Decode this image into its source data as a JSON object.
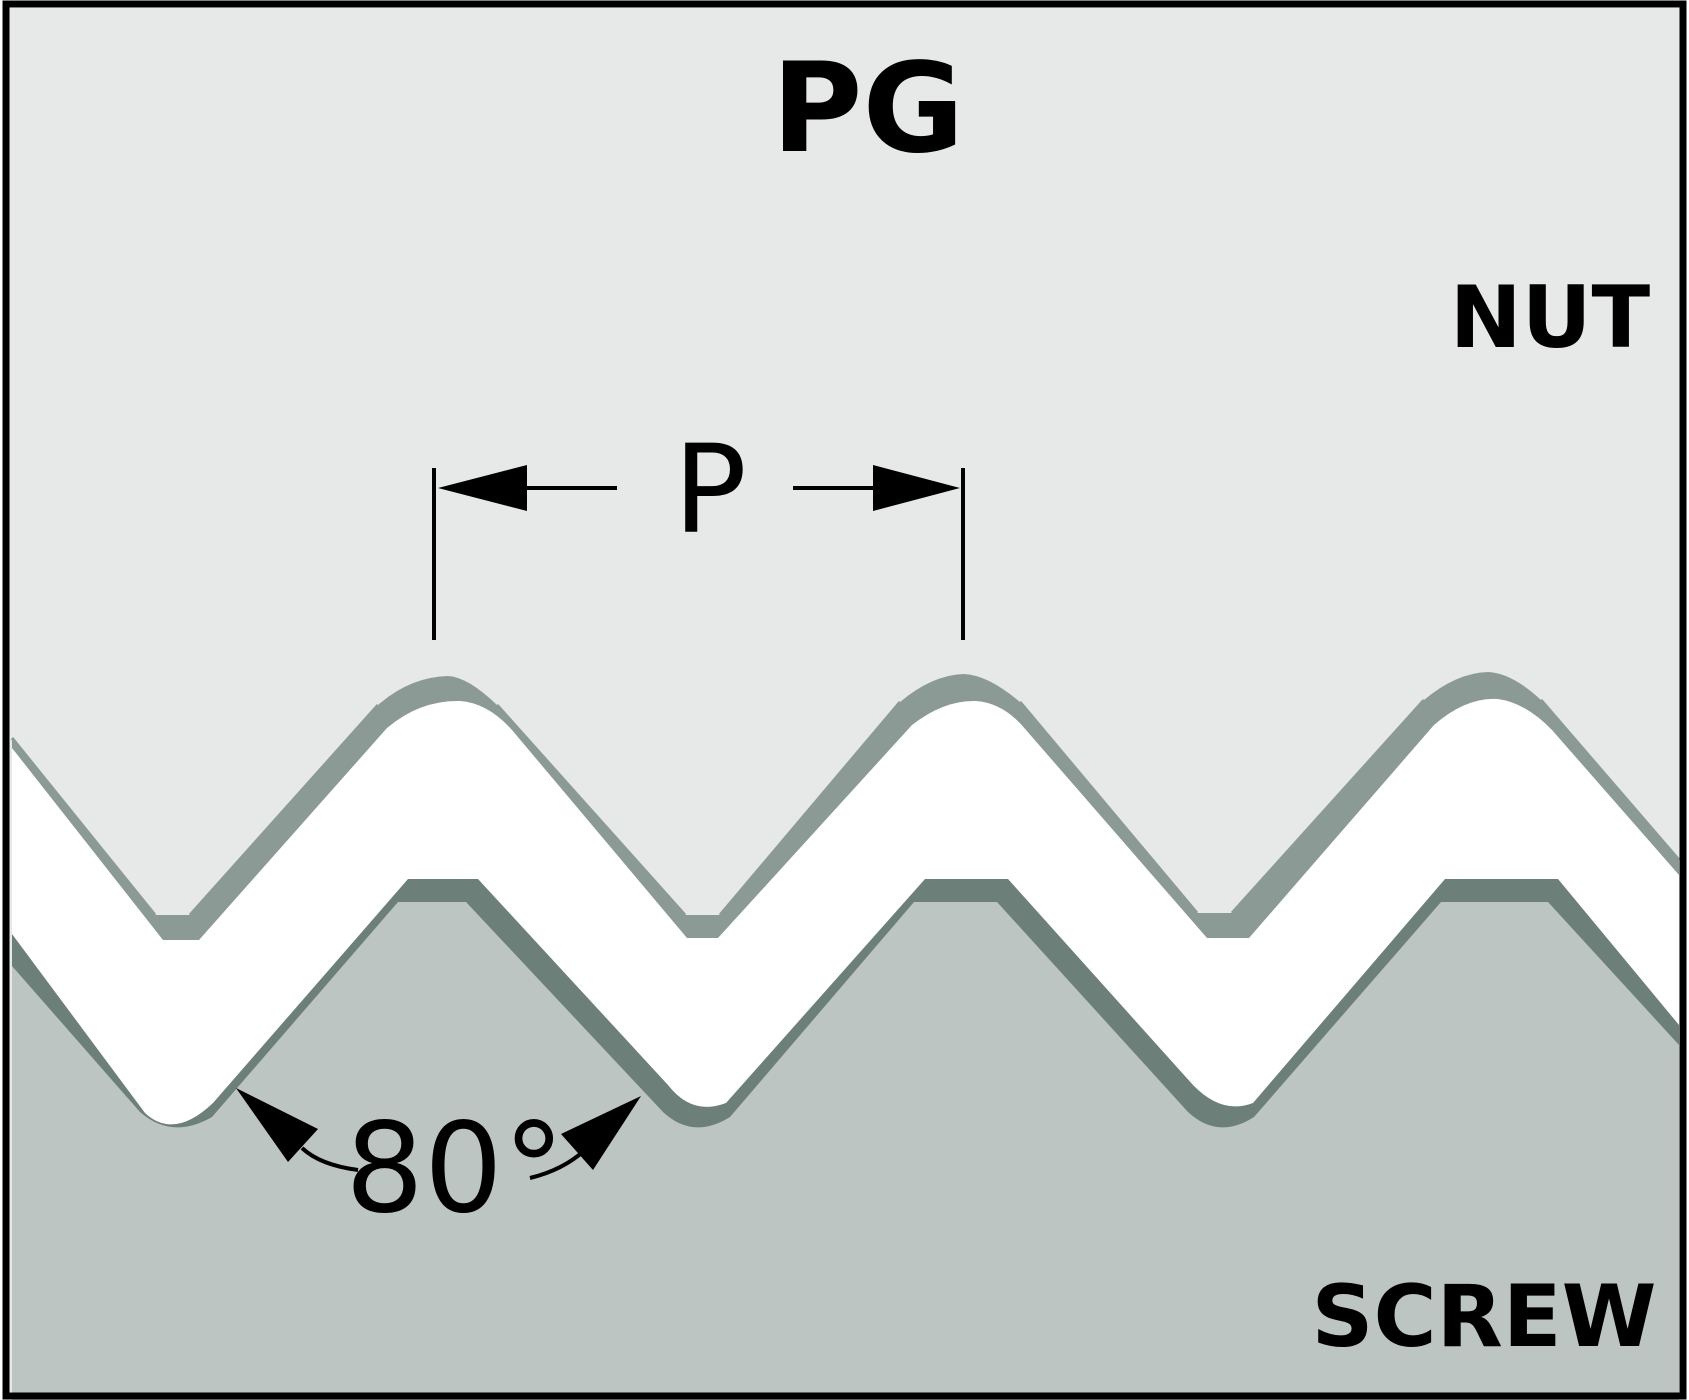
{
  "title": "PG",
  "nut_label": "NUT",
  "screw_label": "SCREW",
  "pitch_label": "P",
  "angle_label": "80°",
  "colors": {
    "nut_fill": "#e7e9e8",
    "nut_edge": "#8b9a95",
    "screw_fill": "#bcc5c2",
    "screw_edge": "#6d7f79",
    "gap": "#ffffff",
    "ink": "#000000"
  }
}
